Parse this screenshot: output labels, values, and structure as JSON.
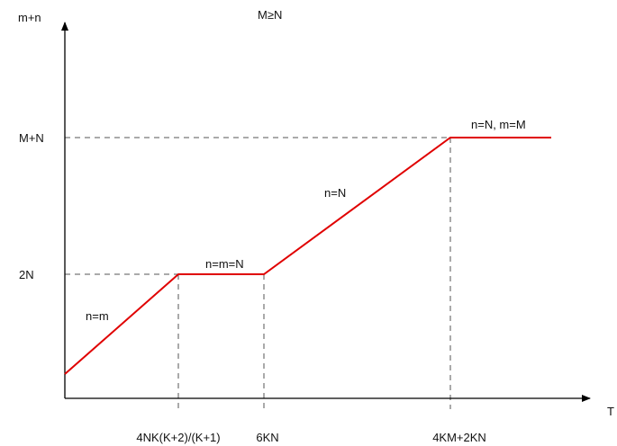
{
  "chart_data": {
    "type": "line",
    "title": "M≥N",
    "xlabel": "T",
    "ylabel": "m+n",
    "x_ticks": [
      "4NK(K+2)/(K+1)",
      "6KN",
      "4KM+2KN"
    ],
    "y_ticks": [
      "2N",
      "M+N"
    ],
    "series": [
      {
        "color": "#e00000",
        "points": [
          {
            "x": 0,
            "y": "N"
          },
          {
            "x": "4NK(K+2)/(K+1)",
            "y": "2N"
          },
          {
            "x": "6KN",
            "y": "2N"
          },
          {
            "x": "4KM+2KN",
            "y": "M+N"
          },
          {
            "x": "end",
            "y": "M+N"
          }
        ]
      }
    ],
    "annotations": [
      "n=m",
      "n=m=N",
      "n=N",
      "n=N, m=M"
    ],
    "grid": false,
    "colors": {
      "curve": "#e00000",
      "axes": "#000000",
      "guides": "#555555"
    }
  }
}
